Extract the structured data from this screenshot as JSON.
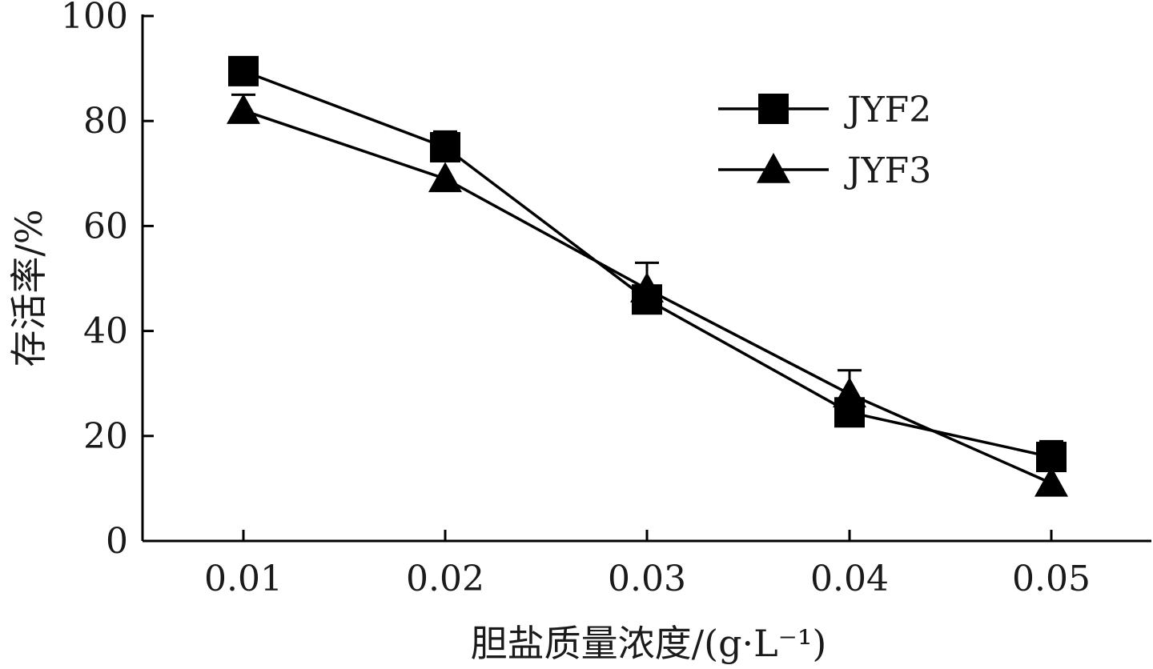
{
  "chart_data": {
    "type": "line",
    "x": [
      "0.01",
      "0.02",
      "0.03",
      "0.04",
      "0.05"
    ],
    "xlabel": "胆盐质量浓度/(g·L⁻¹)",
    "ylabel": "存活率/%",
    "ylim": [
      0,
      100
    ],
    "yticks": [
      0,
      20,
      40,
      60,
      80,
      100
    ],
    "grid": false,
    "legend": "top-right",
    "series": [
      {
        "name": "JYF2",
        "marker": "square",
        "values": [
          89.5,
          75,
          46,
          24.5,
          16
        ],
        "error": [
          0,
          3,
          0,
          0,
          3
        ]
      },
      {
        "name": "JYF3",
        "marker": "triangle",
        "values": [
          82,
          69,
          48,
          28,
          11
        ],
        "error": [
          3,
          0,
          5,
          4.5,
          0
        ]
      }
    ],
    "colors": {
      "line": "#000000",
      "marker": "#000000",
      "axis": "#000000"
    }
  }
}
